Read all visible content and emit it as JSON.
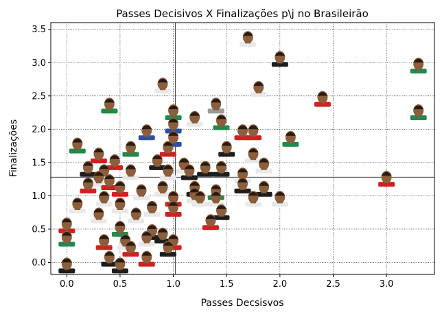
{
  "chart_data": {
    "type": "scatter",
    "title": "Passes Decisivos X Finalizações p\\j no Brasileirão",
    "xlabel": "Passes Decsisvos",
    "ylabel": "Finalizações",
    "xlim": [
      -0.15,
      3.45
    ],
    "ylim": [
      -0.18,
      3.6
    ],
    "xticks": [
      "0.0",
      "0.5",
      "1.0",
      "1.5",
      "2.0",
      "2.5",
      "3.0"
    ],
    "xtick_values": [
      0,
      0.5,
      1.0,
      1.5,
      2.0,
      2.5,
      3.0
    ],
    "yticks": [
      "0.0",
      "0.5",
      "1.0",
      "1.5",
      "2.0",
      "2.5",
      "3.0",
      "3.5"
    ],
    "ytick_values": [
      0,
      0.5,
      1.0,
      1.5,
      2.0,
      2.5,
      3.0,
      3.5
    ],
    "grid": true,
    "reference_lines": {
      "x_mean": 1.02,
      "y_mean": 1.28
    },
    "marker": "player-photo",
    "kit_colors": {
      "black": "#1d1d1d",
      "red": "#d21f1f",
      "green": "#1f8a4c",
      "white": "#e8e8e8",
      "gray": "#9a9a9a",
      "blue": "#2d4fa3"
    },
    "points": [
      {
        "x": 1.7,
        "y": 3.35,
        "kit": "white"
      },
      {
        "x": 2.0,
        "y": 3.05,
        "kit": "black"
      },
      {
        "x": 3.3,
        "y": 2.95,
        "kit": "green"
      },
      {
        "x": 0.9,
        "y": 2.65,
        "kit": "white"
      },
      {
        "x": 1.8,
        "y": 2.6,
        "kit": "white"
      },
      {
        "x": 2.4,
        "y": 2.45,
        "kit": "red"
      },
      {
        "x": 0.4,
        "y": 2.35,
        "kit": "green"
      },
      {
        "x": 1.4,
        "y": 2.35,
        "kit": "gray"
      },
      {
        "x": 3.3,
        "y": 2.25,
        "kit": "green"
      },
      {
        "x": 1.0,
        "y": 2.25,
        "kit": "green"
      },
      {
        "x": 1.2,
        "y": 2.15,
        "kit": "white"
      },
      {
        "x": 1.45,
        "y": 2.1,
        "kit": "green"
      },
      {
        "x": 1.0,
        "y": 2.05,
        "kit": "blue"
      },
      {
        "x": 0.75,
        "y": 1.95,
        "kit": "blue"
      },
      {
        "x": 1.65,
        "y": 1.95,
        "kit": "red"
      },
      {
        "x": 1.75,
        "y": 1.95,
        "kit": "red"
      },
      {
        "x": 2.1,
        "y": 1.85,
        "kit": "green"
      },
      {
        "x": 1.0,
        "y": 1.85,
        "kit": "blue"
      },
      {
        "x": 0.1,
        "y": 1.75,
        "kit": "green"
      },
      {
        "x": 0.6,
        "y": 1.7,
        "kit": "green"
      },
      {
        "x": 0.95,
        "y": 1.7,
        "kit": "red"
      },
      {
        "x": 1.5,
        "y": 1.7,
        "kit": "black"
      },
      {
        "x": 0.3,
        "y": 1.6,
        "kit": "red"
      },
      {
        "x": 1.75,
        "y": 1.6,
        "kit": "white"
      },
      {
        "x": 0.85,
        "y": 1.5,
        "kit": "black"
      },
      {
        "x": 0.45,
        "y": 1.5,
        "kit": "red"
      },
      {
        "x": 1.1,
        "y": 1.45,
        "kit": "white"
      },
      {
        "x": 1.3,
        "y": 1.4,
        "kit": "black"
      },
      {
        "x": 1.45,
        "y": 1.4,
        "kit": "black"
      },
      {
        "x": 1.85,
        "y": 1.45,
        "kit": "white"
      },
      {
        "x": 0.2,
        "y": 1.4,
        "kit": "black"
      },
      {
        "x": 0.35,
        "y": 1.35,
        "kit": "white"
      },
      {
        "x": 0.6,
        "y": 1.35,
        "kit": "white"
      },
      {
        "x": 0.95,
        "y": 1.35,
        "kit": "white"
      },
      {
        "x": 1.15,
        "y": 1.35,
        "kit": "black"
      },
      {
        "x": 1.65,
        "y": 1.3,
        "kit": "white"
      },
      {
        "x": 0.3,
        "y": 1.25,
        "kit": "white"
      },
      {
        "x": 0.4,
        "y": 1.2,
        "kit": "red"
      },
      {
        "x": 0.2,
        "y": 1.15,
        "kit": "red"
      },
      {
        "x": 1.65,
        "y": 1.15,
        "kit": "black"
      },
      {
        "x": 3.0,
        "y": 1.25,
        "kit": "red"
      },
      {
        "x": 0.5,
        "y": 1.1,
        "kit": "red"
      },
      {
        "x": 0.9,
        "y": 1.1,
        "kit": "white"
      },
      {
        "x": 1.2,
        "y": 1.1,
        "kit": "black"
      },
      {
        "x": 1.85,
        "y": 1.1,
        "kit": "black"
      },
      {
        "x": 0.7,
        "y": 1.05,
        "kit": "white"
      },
      {
        "x": 1.4,
        "y": 1.05,
        "kit": "green"
      },
      {
        "x": 1.2,
        "y": 1.0,
        "kit": "white"
      },
      {
        "x": 1.25,
        "y": 0.95,
        "kit": "white"
      },
      {
        "x": 1.4,
        "y": 0.95,
        "kit": "white"
      },
      {
        "x": 2.0,
        "y": 0.95,
        "kit": "white"
      },
      {
        "x": 0.35,
        "y": 0.95,
        "kit": "white"
      },
      {
        "x": 1.75,
        "y": 0.95,
        "kit": "white"
      },
      {
        "x": 1.0,
        "y": 0.95,
        "kit": "red"
      },
      {
        "x": 0.1,
        "y": 0.85,
        "kit": "white"
      },
      {
        "x": 0.5,
        "y": 0.85,
        "kit": "white"
      },
      {
        "x": 0.8,
        "y": 0.8,
        "kit": "white"
      },
      {
        "x": 1.0,
        "y": 0.8,
        "kit": "red"
      },
      {
        "x": 1.45,
        "y": 0.75,
        "kit": "black"
      },
      {
        "x": 0.3,
        "y": 0.7,
        "kit": "white"
      },
      {
        "x": 0.65,
        "y": 0.7,
        "kit": "white"
      },
      {
        "x": 1.35,
        "y": 0.6,
        "kit": "red"
      },
      {
        "x": 0.0,
        "y": 0.55,
        "kit": "red"
      },
      {
        "x": 0.5,
        "y": 0.5,
        "kit": "green"
      },
      {
        "x": 0.8,
        "y": 0.45,
        "kit": "black"
      },
      {
        "x": 0.75,
        "y": 0.35,
        "kit": "white"
      },
      {
        "x": 0.9,
        "y": 0.4,
        "kit": "black"
      },
      {
        "x": 0.0,
        "y": 0.35,
        "kit": "green"
      },
      {
        "x": 0.35,
        "y": 0.3,
        "kit": "red"
      },
      {
        "x": 0.55,
        "y": 0.3,
        "kit": "white"
      },
      {
        "x": 1.0,
        "y": 0.3,
        "kit": "red"
      },
      {
        "x": 0.6,
        "y": 0.2,
        "kit": "red"
      },
      {
        "x": 0.95,
        "y": 0.2,
        "kit": "black"
      },
      {
        "x": 0.4,
        "y": 0.05,
        "kit": "black"
      },
      {
        "x": 0.75,
        "y": 0.05,
        "kit": "red"
      },
      {
        "x": 0.0,
        "y": -0.05,
        "kit": "black"
      },
      {
        "x": 0.5,
        "y": -0.05,
        "kit": "black"
      }
    ]
  }
}
